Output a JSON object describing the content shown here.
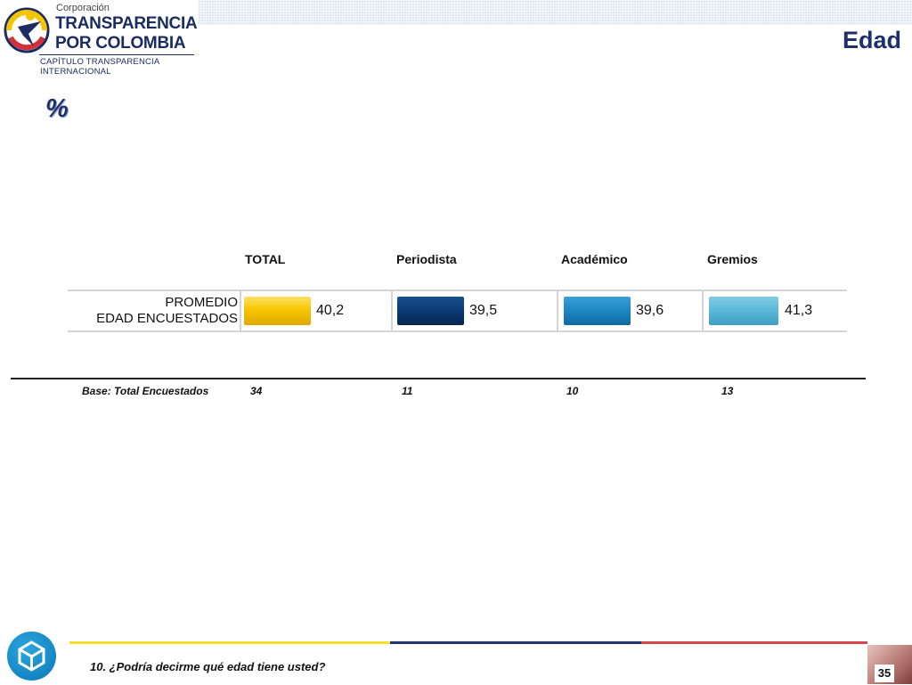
{
  "header": {
    "logo_small": "Corporación",
    "logo_line1": "TRANSPARENCIA",
    "logo_line2": "POR COLOMBIA",
    "logo_sub": "CAPÍTULO TRANSPARENCIA INTERNACIONAL"
  },
  "page_title": "Edad",
  "percent_symbol": "%",
  "table": {
    "columns": [
      "TOTAL",
      "Periodista",
      "Académico",
      "Gremios"
    ],
    "row_label_line1": "PROMEDIO",
    "row_label_line2": "EDAD ENCUESTADOS",
    "values": [
      "40,2",
      "39,5",
      "39,6",
      "41,3"
    ],
    "colors": [
      "#f7c600",
      "#0b3a73",
      "#1c86c4",
      "#5ab8d9"
    ]
  },
  "base": {
    "label": "Base: Total Encuestados",
    "counts": [
      "34",
      "11",
      "10",
      "13"
    ]
  },
  "footer": {
    "question": "10. ¿Podría decirme qué edad tiene usted?",
    "page_number": "35",
    "bar_colors": [
      "#f5e02c",
      "#25356b",
      "#d64550"
    ]
  }
}
